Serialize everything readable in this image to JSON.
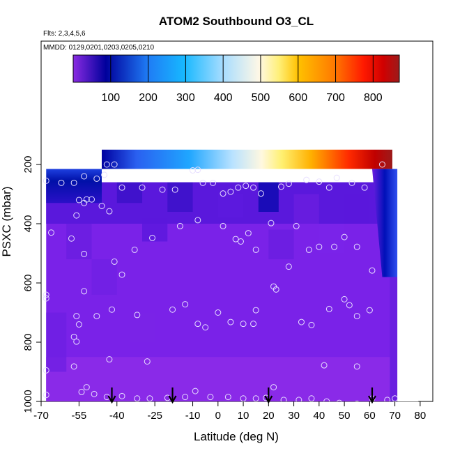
{
  "chart_data": {
    "type": "heatmap",
    "title": "ATOM2 Southbound O3_CL",
    "subtitle_left": "Flts: 2,3,4,5,6",
    "legend_note": "MMDD: 0129,0201,0203,0205,0210",
    "xlabel": "Latitude (deg N)",
    "ylabel": "PSXC (mbar)",
    "xlim": [
      -70,
      85
    ],
    "ylim": [
      1000,
      100
    ],
    "x_ticks": [
      -70,
      -55,
      -40,
      -25,
      -10,
      0,
      10,
      20,
      30,
      40,
      50,
      60,
      70,
      80
    ],
    "y_ticks": [
      200,
      400,
      600,
      800,
      1000
    ],
    "colorbar": {
      "range": [
        0,
        870
      ],
      "ticks": [
        100,
        200,
        300,
        400,
        500,
        600,
        700,
        800
      ],
      "colors": [
        "#8a2be2",
        "#3a10d0",
        "#00009c",
        "#0022cc",
        "#1f7cf5",
        "#17b8ff",
        "#a8ddff",
        "#fff8e6",
        "#fff07a",
        "#ffc100",
        "#ff7a00",
        "#ff1a00",
        "#d10000",
        "#9c1b1b"
      ]
    },
    "profile_arrows_lat": [
      -42,
      -18,
      20,
      61
    ],
    "observations": [
      [
        -57,
        262
      ],
      [
        -62,
        262
      ],
      [
        -68,
        255
      ],
      [
        -53,
        240
      ],
      [
        -48,
        248
      ],
      [
        -45,
        235
      ],
      [
        -44,
        200
      ],
      [
        -41,
        200
      ],
      [
        -38,
        278
      ],
      [
        -30,
        278
      ],
      [
        -22,
        285
      ],
      [
        -17,
        285
      ],
      [
        -10,
        220
      ],
      [
        -8,
        218
      ],
      [
        -6,
        262
      ],
      [
        -2,
        262
      ],
      [
        2,
        298
      ],
      [
        5,
        292
      ],
      [
        8,
        278
      ],
      [
        11,
        272
      ],
      [
        14,
        278
      ],
      [
        17,
        298
      ],
      [
        25,
        275
      ],
      [
        28,
        265
      ],
      [
        35,
        252
      ],
      [
        40,
        258
      ],
      [
        44,
        278
      ],
      [
        47,
        245
      ],
      [
        53,
        262
      ],
      [
        58,
        278
      ],
      [
        65,
        200
      ],
      [
        -55,
        320
      ],
      [
        -52,
        318
      ],
      [
        -50,
        318
      ],
      [
        -46,
        340
      ],
      [
        -43,
        358
      ],
      [
        -56,
        372
      ],
      [
        -53,
        330
      ],
      [
        -66,
        430
      ],
      [
        -58,
        450
      ],
      [
        -53,
        502
      ],
      [
        -41,
        528
      ],
      [
        -38,
        572
      ],
      [
        -33,
        488
      ],
      [
        -26,
        448
      ],
      [
        -15,
        408
      ],
      [
        -8,
        388
      ],
      [
        2,
        408
      ],
      [
        7,
        452
      ],
      [
        9,
        460
      ],
      [
        12,
        432
      ],
      [
        15,
        488
      ],
      [
        21,
        398
      ],
      [
        28,
        545
      ],
      [
        31,
        408
      ],
      [
        36,
        488
      ],
      [
        40,
        478
      ],
      [
        46,
        478
      ],
      [
        50,
        445
      ],
      [
        55,
        478
      ],
      [
        61,
        558
      ],
      [
        -53,
        628
      ],
      [
        -48,
        712
      ],
      [
        -56,
        712
      ],
      [
        -55,
        740
      ],
      [
        -57,
        782
      ],
      [
        -56,
        798
      ],
      [
        -42,
        690
      ],
      [
        -32,
        708
      ],
      [
        -18,
        690
      ],
      [
        -13,
        672
      ],
      [
        -8,
        738
      ],
      [
        -5,
        750
      ],
      [
        0,
        700
      ],
      [
        5,
        732
      ],
      [
        10,
        738
      ],
      [
        14,
        738
      ],
      [
        15,
        692
      ],
      [
        22,
        612
      ],
      [
        23,
        622
      ],
      [
        33,
        732
      ],
      [
        37,
        742
      ],
      [
        44,
        688
      ],
      [
        50,
        655
      ],
      [
        52,
        675
      ],
      [
        55,
        712
      ],
      [
        60,
        692
      ],
      [
        -68,
        640
      ],
      [
        -68,
        652
      ],
      [
        -43,
        858
      ],
      [
        -28,
        865
      ],
      [
        -57,
        882
      ],
      [
        42,
        878
      ],
      [
        55,
        882
      ],
      [
        -68,
        895
      ],
      [
        -54,
        968
      ],
      [
        -52,
        952
      ],
      [
        -49,
        975
      ],
      [
        -44,
        985
      ],
      [
        -38,
        982
      ],
      [
        -32,
        990
      ],
      [
        -27,
        990
      ],
      [
        -20,
        988
      ],
      [
        -13,
        985
      ],
      [
        -9,
        965
      ],
      [
        -3,
        985
      ],
      [
        4,
        985
      ],
      [
        10,
        990
      ],
      [
        15,
        990
      ],
      [
        19,
        988
      ],
      [
        22,
        952
      ],
      [
        26,
        995
      ],
      [
        32,
        995
      ],
      [
        37,
        990
      ],
      [
        43,
        1000
      ],
      [
        48,
        1005
      ],
      [
        55,
        1008
      ],
      [
        61,
        990
      ],
      [
        67,
        995
      ],
      [
        70,
        990
      ],
      [
        -68,
        978
      ]
    ]
  }
}
